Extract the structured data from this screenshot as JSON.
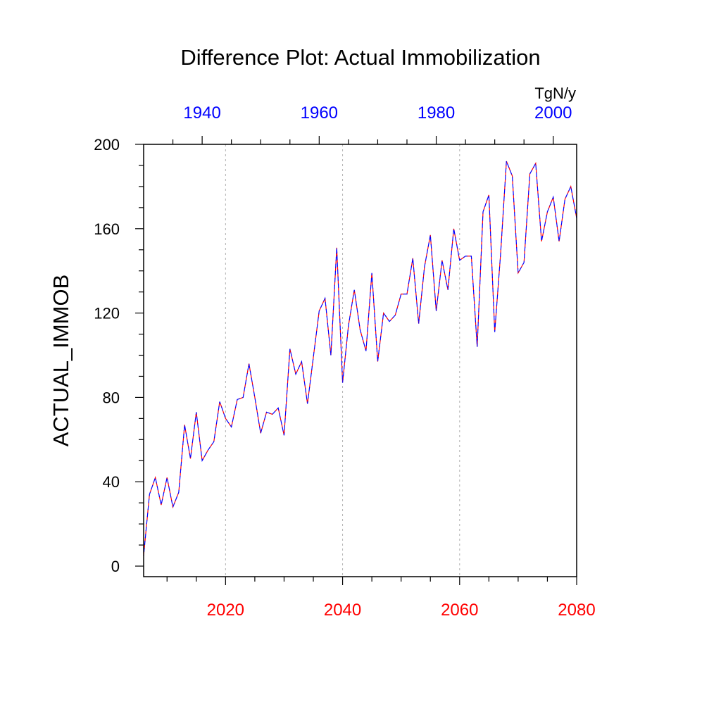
{
  "chart_data": {
    "type": "line",
    "title": "Difference Plot: Actual Immobilization",
    "ylabel": "ACTUAL_IMMOB",
    "units": "TgN/y",
    "xlim_bottom": [
      2006,
      2080
    ],
    "xlim_top": [
      1930,
      2004
    ],
    "ylim": [
      -5,
      200
    ],
    "grid": "vertical dotted at bottom-axis major ticks",
    "bottom_axis": {
      "ticks": [
        2020,
        2040,
        2060,
        2080
      ],
      "labels": [
        "2020",
        "2040",
        "2060",
        "2080"
      ],
      "color": "#ff0000"
    },
    "top_axis": {
      "ticks": [
        1940,
        1960,
        1980,
        2000
      ],
      "labels": [
        "1940",
        "1960",
        "1980",
        "2000"
      ],
      "color": "#0000ff"
    },
    "y_axis": {
      "ticks": [
        0,
        40,
        80,
        120,
        160,
        200
      ],
      "labels": [
        "0",
        "40",
        "80",
        "120",
        "160",
        "200"
      ]
    },
    "x": [
      2006,
      2007,
      2008,
      2009,
      2010,
      2011,
      2012,
      2013,
      2014,
      2015,
      2016,
      2017,
      2018,
      2019,
      2020,
      2021,
      2022,
      2023,
      2024,
      2025,
      2026,
      2027,
      2028,
      2029,
      2030,
      2031,
      2032,
      2033,
      2034,
      2035,
      2036,
      2037,
      2038,
      2039,
      2040,
      2041,
      2042,
      2043,
      2044,
      2045,
      2046,
      2047,
      2048,
      2049,
      2050,
      2051,
      2052,
      2053,
      2054,
      2055,
      2056,
      2057,
      2058,
      2059,
      2060,
      2061,
      2062,
      2063,
      2064,
      2065,
      2066,
      2067,
      2068,
      2069,
      2070,
      2071,
      2072,
      2073,
      2074,
      2075,
      2076,
      2077,
      2078,
      2079,
      2080
    ],
    "series": [
      {
        "name": "series-red",
        "color": "#ff0000",
        "style": "dashed",
        "values": [
          5,
          34,
          42,
          29,
          42,
          28,
          35,
          67,
          51,
          73,
          50,
          55,
          59,
          78,
          70,
          66,
          79,
          80,
          96,
          80,
          63,
          73,
          72,
          75,
          62,
          103,
          91,
          97,
          77,
          99,
          121,
          127,
          100,
          151,
          87,
          114,
          131,
          112,
          102,
          139,
          97,
          120,
          116,
          119,
          129,
          129,
          146,
          115,
          142,
          157,
          121,
          145,
          131,
          160,
          145,
          147,
          147,
          104,
          168,
          176,
          111,
          148,
          192,
          185,
          139,
          144,
          186,
          191,
          154,
          168,
          175,
          154,
          174,
          180,
          165
        ]
      },
      {
        "name": "series-blue",
        "color": "#0000ff",
        "style": "dashed",
        "values": [
          5,
          34,
          42,
          29,
          42,
          28,
          35,
          67,
          51,
          73,
          50,
          55,
          59,
          78,
          70,
          66,
          79,
          80,
          96,
          80,
          63,
          73,
          72,
          75,
          62,
          103,
          91,
          97,
          77,
          99,
          121,
          127,
          100,
          151,
          87,
          114,
          131,
          112,
          102,
          139,
          97,
          120,
          116,
          119,
          129,
          129,
          146,
          115,
          142,
          157,
          121,
          145,
          131,
          160,
          145,
          147,
          147,
          104,
          168,
          176,
          111,
          148,
          192,
          185,
          139,
          144,
          186,
          191,
          154,
          168,
          175,
          154,
          174,
          180,
          165
        ]
      }
    ]
  }
}
